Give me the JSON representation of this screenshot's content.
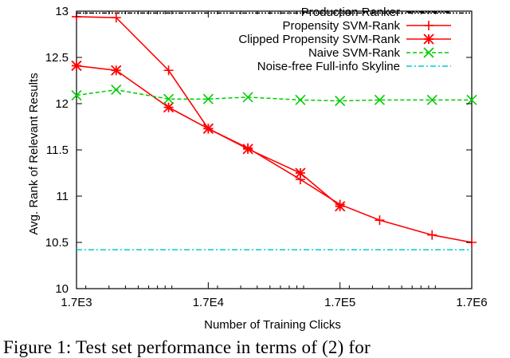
{
  "chart_data": {
    "type": "line",
    "xlabel": "Number of Training Clicks",
    "ylabel": "Avg. Rank of Relevant Results",
    "x_scale": "log",
    "xlim": [
      1700,
      1700000
    ],
    "ylim": [
      10,
      13
    ],
    "x_ticks": [
      1700,
      17000,
      170000,
      1700000
    ],
    "x_tick_labels": [
      "1.7E3",
      "1.7E4",
      "1.7E5",
      "1.7E6"
    ],
    "y_ticks": [
      10,
      10.5,
      11,
      11.5,
      12,
      12.5,
      13
    ],
    "y_tick_labels": [
      "10",
      "10.5",
      "11",
      "11.5",
      "12",
      "12.5",
      "13"
    ],
    "legend_position": "top-right",
    "series": [
      {
        "name": "Production Ranker",
        "style": "dash-dot-dot",
        "color": "#000000",
        "marker": "none",
        "x": [
          1700,
          1700000
        ],
        "y": [
          12.98,
          12.98
        ]
      },
      {
        "name": "Propensity SVM-Rank",
        "style": "solid",
        "color": "#ff0000",
        "marker": "plus",
        "x": [
          1700,
          3400,
          8500,
          17000,
          34000,
          85000,
          170000,
          340000,
          850000,
          1700000
        ],
        "y": [
          12.94,
          12.93,
          12.36,
          11.73,
          11.52,
          11.18,
          10.91,
          10.74,
          10.58,
          10.5
        ]
      },
      {
        "name": "Clipped Propensity SVM-Rank",
        "style": "solid",
        "color": "#ff0000",
        "marker": "star",
        "x": [
          1700,
          3400,
          8500,
          17000,
          34000,
          85000,
          170000
        ],
        "y": [
          12.41,
          12.36,
          11.96,
          11.73,
          11.51,
          11.25,
          10.89
        ]
      },
      {
        "name": "Naive SVM-Rank",
        "style": "dashed",
        "color": "#00cc00",
        "marker": "x",
        "x": [
          1700,
          3400,
          8500,
          17000,
          34000,
          85000,
          170000,
          340000,
          850000,
          1700000
        ],
        "y": [
          12.09,
          12.15,
          12.05,
          12.05,
          12.07,
          12.04,
          12.03,
          12.04,
          12.04,
          12.04
        ]
      },
      {
        "name": "Noise-free Full-info Skyline",
        "style": "dash-dot",
        "color": "#00cccc",
        "marker": "none",
        "x": [
          1700,
          1700000
        ],
        "y": [
          10.42,
          10.42
        ]
      }
    ]
  },
  "caption": "Figure 1: Test set performance in terms of (2) for"
}
